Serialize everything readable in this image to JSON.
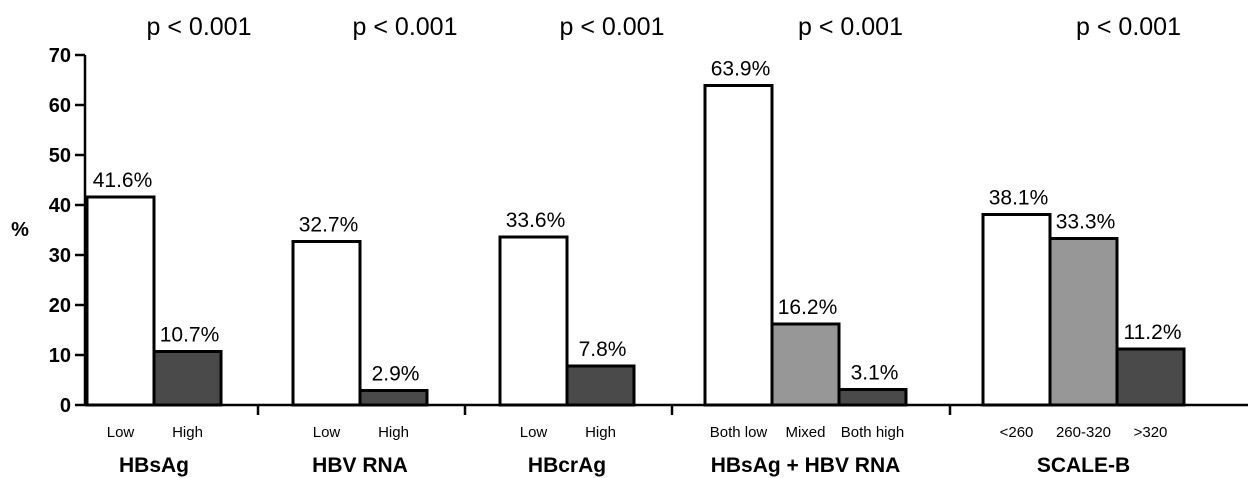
{
  "chart_data": {
    "type": "bar",
    "ylabel": "%",
    "ylim": [
      0,
      70
    ],
    "yticks": [
      0,
      10,
      20,
      30,
      40,
      50,
      60,
      70
    ],
    "grid": false,
    "groups": [
      {
        "name": "HBsAg",
        "p_value": "p < 0.001",
        "bars": [
          {
            "category": "Low",
            "value": 41.6,
            "label": "41.6%",
            "color": "#ffffff"
          },
          {
            "category": "High",
            "value": 10.7,
            "label": "10.7%",
            "color": "#4a4a4a"
          }
        ]
      },
      {
        "name": "HBV RNA",
        "p_value": "p < 0.001",
        "bars": [
          {
            "category": "Low",
            "value": 32.7,
            "label": "32.7%",
            "color": "#ffffff"
          },
          {
            "category": "High",
            "value": 2.9,
            "label": "2.9%",
            "color": "#4a4a4a"
          }
        ]
      },
      {
        "name": "HBcrAg",
        "p_value": "p < 0.001",
        "bars": [
          {
            "category": "Low",
            "value": 33.6,
            "label": "33.6%",
            "color": "#ffffff"
          },
          {
            "category": "High",
            "value": 7.8,
            "label": "7.8%",
            "color": "#4a4a4a"
          }
        ]
      },
      {
        "name": "HBsAg + HBV RNA",
        "p_value": "p < 0.001",
        "bars": [
          {
            "category": "Both low",
            "value": 63.9,
            "label": "63.9%",
            "color": "#ffffff"
          },
          {
            "category": "Mixed",
            "value": 16.2,
            "label": "16.2%",
            "color": "#979797"
          },
          {
            "category": "Both high",
            "value": 3.1,
            "label": "3.1%",
            "color": "#4a4a4a"
          }
        ]
      },
      {
        "name": "SCALE-B",
        "p_value": "p < 0.001",
        "bars": [
          {
            "category": "<260",
            "value": 38.1,
            "label": "38.1%",
            "color": "#ffffff"
          },
          {
            "category": "260-320",
            "value": 33.3,
            "label": "33.3%",
            "color": "#979797"
          },
          {
            "category": ">320",
            "value": 11.2,
            "label": "11.2%",
            "color": "#4a4a4a"
          }
        ]
      }
    ]
  }
}
